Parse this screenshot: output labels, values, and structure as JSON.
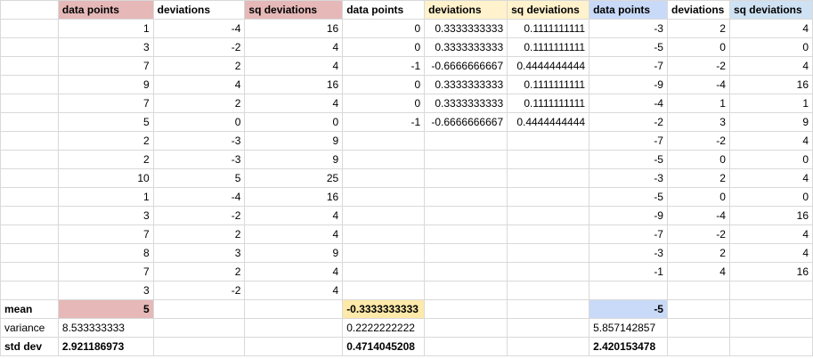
{
  "headers": [
    "",
    "data points",
    "deviations",
    "sq deviations",
    "data points",
    "deviations",
    "sq deviations",
    "data points",
    "deviations",
    "sq deviations"
  ],
  "rows": [
    [
      "",
      "1",
      "-4",
      "16",
      "0",
      "0.3333333333",
      "0.1111111111",
      "-3",
      "2",
      "4"
    ],
    [
      "",
      "3",
      "-2",
      "4",
      "0",
      "0.3333333333",
      "0.1111111111",
      "-5",
      "0",
      "0"
    ],
    [
      "",
      "7",
      "2",
      "4",
      "-1",
      "-0.6666666667",
      "0.4444444444",
      "-7",
      "-2",
      "4"
    ],
    [
      "",
      "9",
      "4",
      "16",
      "0",
      "0.3333333333",
      "0.1111111111",
      "-9",
      "-4",
      "16"
    ],
    [
      "",
      "7",
      "2",
      "4",
      "0",
      "0.3333333333",
      "0.1111111111",
      "-4",
      "1",
      "1"
    ],
    [
      "",
      "5",
      "0",
      "0",
      "-1",
      "-0.6666666667",
      "0.4444444444",
      "-2",
      "3",
      "9"
    ],
    [
      "",
      "2",
      "-3",
      "9",
      "",
      "",
      "",
      "-7",
      "-2",
      "4"
    ],
    [
      "",
      "2",
      "-3",
      "9",
      "",
      "",
      "",
      "-5",
      "0",
      "0"
    ],
    [
      "",
      "10",
      "5",
      "25",
      "",
      "",
      "",
      "-3",
      "2",
      "4"
    ],
    [
      "",
      "1",
      "-4",
      "16",
      "",
      "",
      "",
      "-5",
      "0",
      "0"
    ],
    [
      "",
      "3",
      "-2",
      "4",
      "",
      "",
      "",
      "-9",
      "-4",
      "16"
    ],
    [
      "",
      "7",
      "2",
      "4",
      "",
      "",
      "",
      "-7",
      "-2",
      "4"
    ],
    [
      "",
      "8",
      "3",
      "9",
      "",
      "",
      "",
      "-3",
      "2",
      "4"
    ],
    [
      "",
      "7",
      "2",
      "4",
      "",
      "",
      "",
      "-1",
      "4",
      "16"
    ],
    [
      "",
      "3",
      "-2",
      "4",
      "",
      "",
      "",
      "",
      "",
      ""
    ]
  ],
  "summary": {
    "mean": {
      "label": "mean",
      "a": "5",
      "b": "-0.3333333333",
      "c": "-5"
    },
    "variance": {
      "label": "variance",
      "a": "8.533333333",
      "b": "0.2222222222",
      "c": "5.857142857"
    },
    "stddev": {
      "label": "std dev",
      "a": "2.921186973",
      "b": "0.4714045208",
      "c": "2.420153478"
    }
  }
}
